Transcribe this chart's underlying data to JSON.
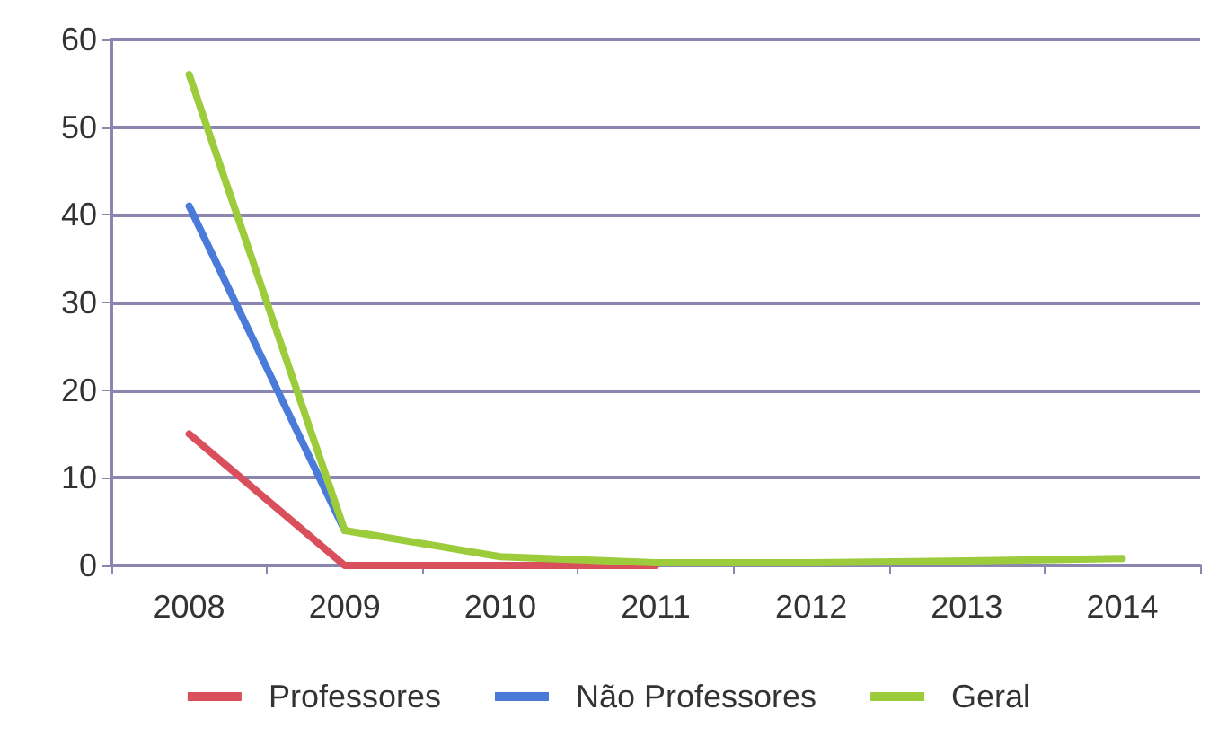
{
  "chart_data": {
    "type": "line",
    "categories": [
      "2008",
      "2009",
      "2010",
      "2011",
      "2012",
      "2013",
      "2014"
    ],
    "series": [
      {
        "name": "Professores",
        "color": "#d9505c",
        "values": [
          15,
          0,
          0,
          0,
          null,
          null,
          null
        ]
      },
      {
        "name": "Não Professores",
        "color": "#4a7bd8",
        "values": [
          41,
          4,
          null,
          null,
          null,
          null,
          null
        ]
      },
      {
        "name": "Geral",
        "color": "#9ccc3c",
        "values": [
          56,
          4,
          1,
          0.3,
          0.3,
          0.5,
          0.8
        ]
      }
    ],
    "ylim": [
      0,
      60
    ],
    "yticks": [
      0,
      10,
      20,
      30,
      40,
      50,
      60
    ],
    "grid": "y",
    "legend": "bottom",
    "marker": "none",
    "line_style": "solid"
  }
}
